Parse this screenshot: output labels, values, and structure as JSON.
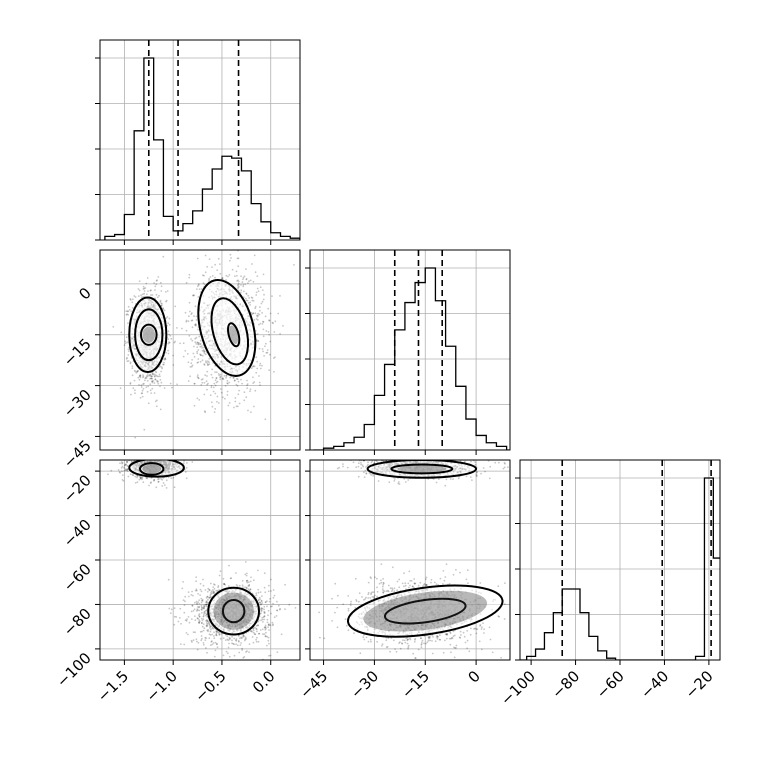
{
  "chart_data": {
    "type": "corner",
    "parameters": [
      {
        "range": [
          -1.75,
          0.3
        ],
        "ticks": [
          -1.5,
          -1.0,
          -0.5,
          0.0
        ],
        "tick_labels": [
          "−1.5",
          "−1.0",
          "−0.5",
          "0.0"
        ],
        "quantiles": [
          -1.25,
          -0.95,
          -0.33
        ]
      },
      {
        "range": [
          -49,
          10
        ],
        "ticks": [
          -45,
          -30,
          -15,
          0
        ],
        "tick_labels": [
          "−45",
          "−30",
          "−15",
          "0"
        ],
        "quantiles": [
          -24,
          -17,
          -10
        ]
      },
      {
        "range": [
          -105,
          -15
        ],
        "ticks": [
          -100,
          -80,
          -60,
          -40,
          -20
        ],
        "tick_labels": [
          "−100",
          "−80",
          "−60",
          "−40",
          "−20"
        ],
        "quantiles": [
          -86,
          -41,
          -19
        ]
      }
    ],
    "histograms": [
      {
        "param": 0,
        "bin_start": -1.7,
        "bin_width": 0.1,
        "counts": [
          0.02,
          0.03,
          0.14,
          0.6,
          1.0,
          0.55,
          0.13,
          0.05,
          0.09,
          0.16,
          0.28,
          0.39,
          0.46,
          0.45,
          0.38,
          0.2,
          0.1,
          0.04,
          0.02,
          0.01,
          0.0
        ]
      },
      {
        "param": 1,
        "bin_start": -48,
        "bin_width": 3,
        "counts": [
          0.0,
          0.01,
          0.02,
          0.04,
          0.07,
          0.14,
          0.3,
          0.47,
          0.66,
          0.81,
          0.92,
          1.0,
          0.82,
          0.57,
          0.35,
          0.17,
          0.08,
          0.04,
          0.02,
          0.0
        ]
      },
      {
        "param": 2,
        "bin_start": -106,
        "bin_width": 4,
        "counts": [
          0.0,
          0.02,
          0.06,
          0.15,
          0.26,
          0.39,
          0.39,
          0.26,
          0.13,
          0.05,
          0.01,
          0.0,
          0.0,
          0.0,
          0.0,
          0.0,
          0.0,
          0.0,
          0.0,
          0.0,
          0.02,
          1.0,
          0.56
        ]
      }
    ],
    "blobs": [
      {
        "x": 0,
        "y": 1,
        "clusters": [
          {
            "cx": -1.25,
            "cy": -16,
            "sx": 0.09,
            "sy": 7,
            "w": 0.5
          },
          {
            "cx": -0.45,
            "cy": -14,
            "sx": 0.19,
            "sy": 9,
            "w": 0.5
          }
        ],
        "contours": [
          {
            "cx": -1.25,
            "cy": -15,
            "rx": 0.08,
            "ry": 3,
            "rot": 0
          },
          {
            "cx": -1.25,
            "cy": -15,
            "rx": 0.14,
            "ry": 7.5,
            "rot": 0
          },
          {
            "cx": -1.26,
            "cy": -15,
            "rx": 0.19,
            "ry": 11,
            "rot": 0
          },
          {
            "cx": -0.38,
            "cy": -15,
            "rx": 0.05,
            "ry": 3.5,
            "rot": -15
          },
          {
            "cx": -0.42,
            "cy": -14,
            "rx": 0.17,
            "ry": 10,
            "rot": -15
          },
          {
            "cx": -0.45,
            "cy": -13,
            "rx": 0.27,
            "ry": 14.5,
            "rot": -15
          }
        ]
      },
      {
        "x": 0,
        "y": 2,
        "clusters": [
          {
            "cx": -1.2,
            "cy": -17,
            "sx": 0.13,
            "sy": 3,
            "w": 0.5
          },
          {
            "cx": -0.4,
            "cy": -84,
            "sx": 0.2,
            "sy": 7,
            "w": 0.5
          }
        ],
        "contours": [
          {
            "cx": -1.22,
            "cy": -19,
            "rx": 0.12,
            "ry": 2.6,
            "rot": 0
          },
          {
            "cx": -1.17,
            "cy": -18.5,
            "rx": 0.28,
            "ry": 4,
            "rot": 0
          },
          {
            "cx": -0.38,
            "cy": -83,
            "rx": 0.11,
            "ry": 5,
            "rot": 0
          },
          {
            "cx": -0.38,
            "cy": -83,
            "rx": 0.26,
            "ry": 10.5,
            "rot": 0
          }
        ]
      },
      {
        "x": 1,
        "y": 2,
        "clusters": [
          {
            "cx": -17,
            "cy": -18,
            "sx": 8,
            "sy": 2.5,
            "w": 0.45
          },
          {
            "cx": -17,
            "cy": -84,
            "sx": 9,
            "sy": 7,
            "w": 0.55
          }
        ],
        "contours": [
          {
            "cx": -16,
            "cy": -19,
            "rx": 9,
            "ry": 2,
            "rot": 0
          },
          {
            "cx": -16,
            "cy": -19,
            "rx": 16,
            "ry": 4,
            "rot": 0
          },
          {
            "cx": -15,
            "cy": -83,
            "rx": 12,
            "ry": 5,
            "rot": -8
          },
          {
            "cx": -15,
            "cy": -83,
            "rx": 23,
            "ry": 10.5,
            "rot": -8
          }
        ]
      }
    ],
    "grid": true,
    "xlabel": "",
    "ylabel": ""
  }
}
